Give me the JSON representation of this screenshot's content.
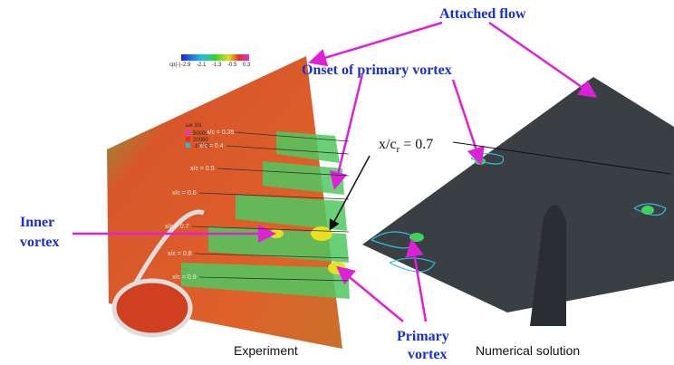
{
  "annotations": {
    "attached_flow": "Attached flow",
    "onset": "Onset of primary vortex",
    "station": {
      "main": "x/c",
      "sub": "r",
      "rest": " = 0.7"
    },
    "inner_vortex": [
      "Inner",
      "vortex"
    ],
    "primary_vortex": [
      "Primary",
      "vortex"
    ]
  },
  "panels": {
    "left": "Experiment",
    "right": "Numerical solution"
  },
  "colorbar": {
    "label": "cp(-)",
    "ticks": [
      "-2.9",
      "-2.1",
      "-1.3",
      "-0.5",
      "0.3"
    ]
  },
  "vorticity_legend": {
    "title": "ωx  1/s",
    "items": [
      "50000",
      "20000",
      "-10000"
    ]
  },
  "stations": [
    "x/c = 0.35",
    "x/c = 0.4",
    "x/c = 0.5",
    "x/c = 0.6",
    "x/c = 0.7",
    "x/c = 0.8",
    "x/c = 0.9"
  ]
}
